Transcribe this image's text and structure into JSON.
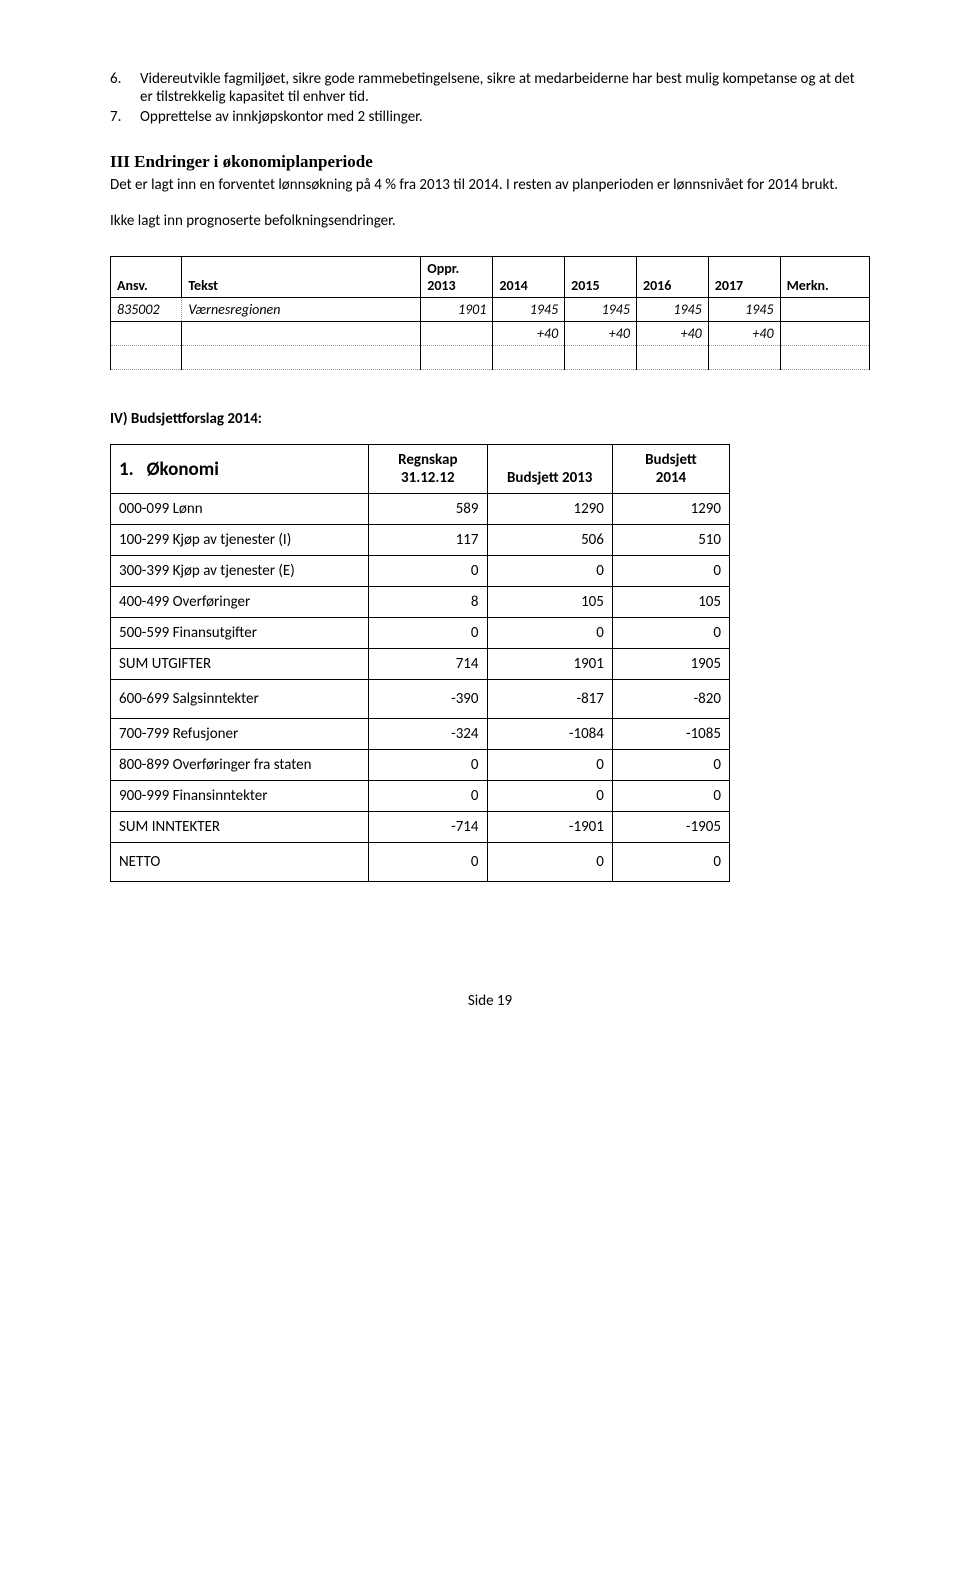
{
  "list": {
    "items": [
      {
        "num": "6.",
        "text": "Videreutvikle fagmiljøet, sikre gode rammebetingelsene, sikre at medarbeiderne har best mulig kompetanse og at det er tilstrekkelig kapasitet til enhver tid."
      },
      {
        "num": "7.",
        "text": "Opprettelse av innkjøpskontor med 2 stillinger."
      }
    ]
  },
  "section3": {
    "roman": "III",
    "title": " Endringer i økonomiplanperiode",
    "para1": "Det er lagt inn en forventet lønnsøkning på 4 % fra 2013 til 2014. I resten av planperioden er lønnsnivået for 2014 brukt.",
    "para2": "Ikke lagt inn prognoserte befolkningsendringer."
  },
  "table1": {
    "headers": {
      "ansv": "Ansv.",
      "tekst": "Tekst",
      "oppr": "Oppr.",
      "y2013": "2013",
      "y2014": "2014",
      "y2015": "2015",
      "y2016": "2016",
      "y2017": "2017",
      "merkn": "Merkn."
    },
    "row1": {
      "ansv": "835002",
      "tekst": "Værnesregionen",
      "v2013": "1901",
      "v2014": "1945",
      "v2015": "1945",
      "v2016": "1945",
      "v2017": "1945"
    },
    "row2": {
      "v2014": "+40",
      "v2015": "+40",
      "v2016": "+40",
      "v2017": "+40"
    }
  },
  "section4": {
    "heading": "IV) Budsjettforslag 2014:"
  },
  "table2": {
    "head": {
      "lead_num": "1.",
      "lead_txt": "Økonomi",
      "col_b1": "Regnskap",
      "col_b2": "31.12.12",
      "col_c": "Budsjett 2013",
      "col_d1": "Budsjett",
      "col_d2": "2014"
    },
    "rows": [
      {
        "label": "000-099 Lønn",
        "b": "589",
        "c": "1290",
        "d": "1290"
      },
      {
        "label": "100-299 Kjøp av tjenester (I)",
        "b": "117",
        "c": "506",
        "d": "510"
      },
      {
        "label": "300-399 Kjøp av tjenester (E)",
        "b": "0",
        "c": "0",
        "d": "0"
      },
      {
        "label": "400-499 Overføringer",
        "b": "8",
        "c": "105",
        "d": "105"
      },
      {
        "label": "500-599 Finansutgifter",
        "b": "0",
        "c": "0",
        "d": "0"
      },
      {
        "label": "SUM UTGIFTER",
        "b": "714",
        "c": "1901",
        "d": "1905"
      },
      {
        "label": " 600-699 Salgsinntekter",
        "b": "-390",
        "c": "-817",
        "d": "-820",
        "tall": true
      },
      {
        "label": "700-799 Refusjoner",
        "b": "-324",
        "c": "-1084",
        "d": "-1085"
      },
      {
        "label": "800-899 Overføringer fra staten",
        "b": "0",
        "c": "0",
        "d": "0"
      },
      {
        "label": "900-999 Finansinntekter",
        "b": "0",
        "c": "0",
        "d": "0"
      },
      {
        "label": "SUM INNTEKTER",
        "b": "-714",
        "c": "-1901",
        "d": "-1905"
      },
      {
        "label": "NETTO",
        "b": "0",
        "c": "0",
        "d": "0",
        "tall": true
      }
    ]
  },
  "footer": {
    "text": "Side 19"
  }
}
